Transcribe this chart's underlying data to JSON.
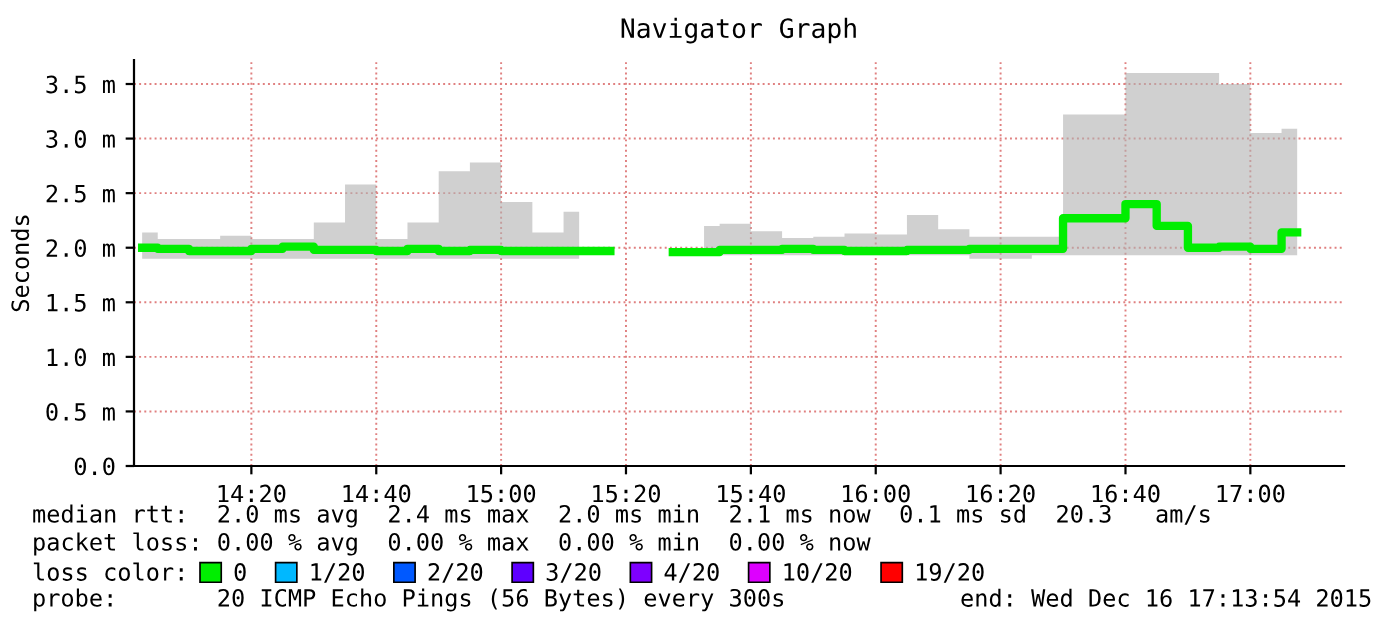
{
  "chart_data": {
    "type": "step",
    "title": "Navigator Graph",
    "ylabel": "Seconds",
    "legend_title": "loss color:",
    "legend": "bottom",
    "x": [
      14.0417,
      14.125,
      14.2083,
      14.2917,
      14.375,
      14.4583,
      14.5417,
      14.625,
      14.7083,
      14.7917,
      14.875,
      14.9583,
      15.0417,
      15.125,
      15.2083,
      15.375,
      15.5417,
      15.625,
      15.7083,
      15.7917,
      15.875,
      15.9583,
      16.0417,
      16.125,
      16.2083,
      16.2917,
      16.375,
      16.4583,
      16.5417,
      16.625,
      16.7083,
      16.7917,
      16.875,
      16.9583,
      17.0417,
      17.125
    ],
    "series": [
      {
        "name": "0",
        "color": "#00ee00",
        "values": [
          2.0,
          1.99,
          1.97,
          1.97,
          1.99,
          2.01,
          1.98,
          1.98,
          1.97,
          1.99,
          1.97,
          1.98,
          1.97,
          1.97,
          1.97,
          null,
          1.96,
          1.98,
          1.98,
          1.99,
          1.98,
          1.97,
          1.97,
          1.98,
          1.98,
          1.99,
          1.99,
          1.99,
          2.27,
          2.27,
          2.4,
          2.2,
          2.0,
          2.01,
          1.99,
          2.14
        ],
        "lower": [
          1.9,
          1.9,
          1.9,
          1.9,
          1.9,
          1.9,
          1.9,
          1.9,
          1.9,
          1.9,
          1.9,
          1.9,
          1.9,
          1.9,
          1.9,
          null,
          1.93,
          1.93,
          1.93,
          1.93,
          1.93,
          1.93,
          1.93,
          1.93,
          1.93,
          1.9,
          1.9,
          1.93,
          1.93,
          1.93,
          1.93,
          1.93,
          1.93,
          1.93,
          1.93,
          1.93
        ],
        "upper": [
          2.14,
          2.08,
          2.08,
          2.11,
          2.08,
          2.08,
          2.23,
          2.58,
          2.08,
          2.23,
          2.7,
          2.78,
          2.42,
          2.14,
          2.33,
          null,
          2.2,
          2.22,
          2.15,
          2.09,
          2.1,
          2.13,
          2.12,
          2.3,
          2.17,
          2.1,
          2.1,
          2.1,
          3.22,
          3.22,
          3.6,
          3.6,
          3.6,
          3.5,
          3.05,
          3.09
        ]
      },
      {
        "name": "1/20",
        "color": "#00b8ff",
        "values": [
          null,
          null,
          null,
          null,
          null,
          null,
          null,
          null,
          null,
          null,
          null,
          null,
          null,
          null,
          null,
          null,
          null,
          null,
          null,
          null,
          null,
          null,
          null,
          null,
          null,
          null,
          null,
          null,
          null,
          null,
          null,
          null,
          null,
          null,
          null,
          null
        ]
      },
      {
        "name": "2/20",
        "color": "#0059ff",
        "values": [
          null,
          null,
          null,
          null,
          null,
          null,
          null,
          null,
          null,
          null,
          null,
          null,
          null,
          null,
          null,
          null,
          null,
          null,
          null,
          null,
          null,
          null,
          null,
          null,
          null,
          null,
          null,
          null,
          null,
          null,
          null,
          null,
          null,
          null,
          null,
          null
        ]
      },
      {
        "name": "3/20",
        "color": "#5e00ff",
        "values": [
          null,
          null,
          null,
          null,
          null,
          null,
          null,
          null,
          null,
          null,
          null,
          null,
          null,
          null,
          null,
          null,
          null,
          null,
          null,
          null,
          null,
          null,
          null,
          null,
          null,
          null,
          null,
          null,
          null,
          null,
          null,
          null,
          null,
          null,
          null,
          null
        ]
      },
      {
        "name": "4/20",
        "color": "#7e00ff",
        "values": [
          null,
          null,
          null,
          null,
          null,
          null,
          null,
          null,
          null,
          null,
          null,
          null,
          null,
          null,
          null,
          null,
          null,
          null,
          null,
          null,
          null,
          null,
          null,
          null,
          null,
          null,
          null,
          null,
          null,
          null,
          null,
          null,
          null,
          null,
          null,
          null
        ]
      },
      {
        "name": "10/20",
        "color": "#dd00ff",
        "values": [
          null,
          null,
          null,
          null,
          null,
          null,
          null,
          null,
          null,
          null,
          null,
          null,
          null,
          null,
          null,
          null,
          null,
          null,
          null,
          null,
          null,
          null,
          null,
          null,
          null,
          null,
          null,
          null,
          null,
          null,
          null,
          null,
          null,
          null,
          null,
          null
        ]
      },
      {
        "name": "19/20",
        "color": "#ff0000",
        "values": [
          null,
          null,
          null,
          null,
          null,
          null,
          null,
          null,
          null,
          null,
          null,
          null,
          null,
          null,
          null,
          null,
          null,
          null,
          null,
          null,
          null,
          null,
          null,
          null,
          null,
          null,
          null,
          null,
          null,
          null,
          null,
          null,
          null,
          null,
          null,
          null
        ]
      }
    ],
    "xlim": [
      14.02,
      17.25
    ],
    "xticks": [
      {
        "value": 14.3333,
        "label": "14:20"
      },
      {
        "value": 14.6667,
        "label": "14:40"
      },
      {
        "value": 15.0,
        "label": "15:00"
      },
      {
        "value": 15.3333,
        "label": "15:20"
      },
      {
        "value": 15.6667,
        "label": "15:40"
      },
      {
        "value": 16.0,
        "label": "16:00"
      },
      {
        "value": 16.3333,
        "label": "16:20"
      },
      {
        "value": 16.6667,
        "label": "16:40"
      },
      {
        "value": 17.0,
        "label": "17:00"
      }
    ],
    "ylim": [
      0,
      3.72
    ],
    "yticks": [
      {
        "value": 0,
        "label": "0.0"
      },
      {
        "value": 0.5,
        "label": "0.5 m"
      },
      {
        "value": 1.0,
        "label": "1.0 m"
      },
      {
        "value": 1.5,
        "label": "1.5 m"
      },
      {
        "value": 2.0,
        "label": "2.0 m"
      },
      {
        "value": 2.5,
        "label": "2.5 m"
      },
      {
        "value": 3.0,
        "label": "3.0 m"
      },
      {
        "value": 3.5,
        "label": "3.5 m"
      }
    ],
    "grid": true,
    "marker": "none",
    "line_style": "solid",
    "annotations": [
      "median rtt:  2.0 ms avg  2.4 ms max  2.0 ms min  2.1 ms now  0.1 ms sd  20.3   am/s",
      "packet loss: 0.00 % avg  0.00 % max  0.00 % min  0.00 % now",
      "probe:       20 ICMP Echo Pings (56 Bytes) every 300s",
      "end: Wed Dec 16 17:13:54 2015"
    ]
  }
}
